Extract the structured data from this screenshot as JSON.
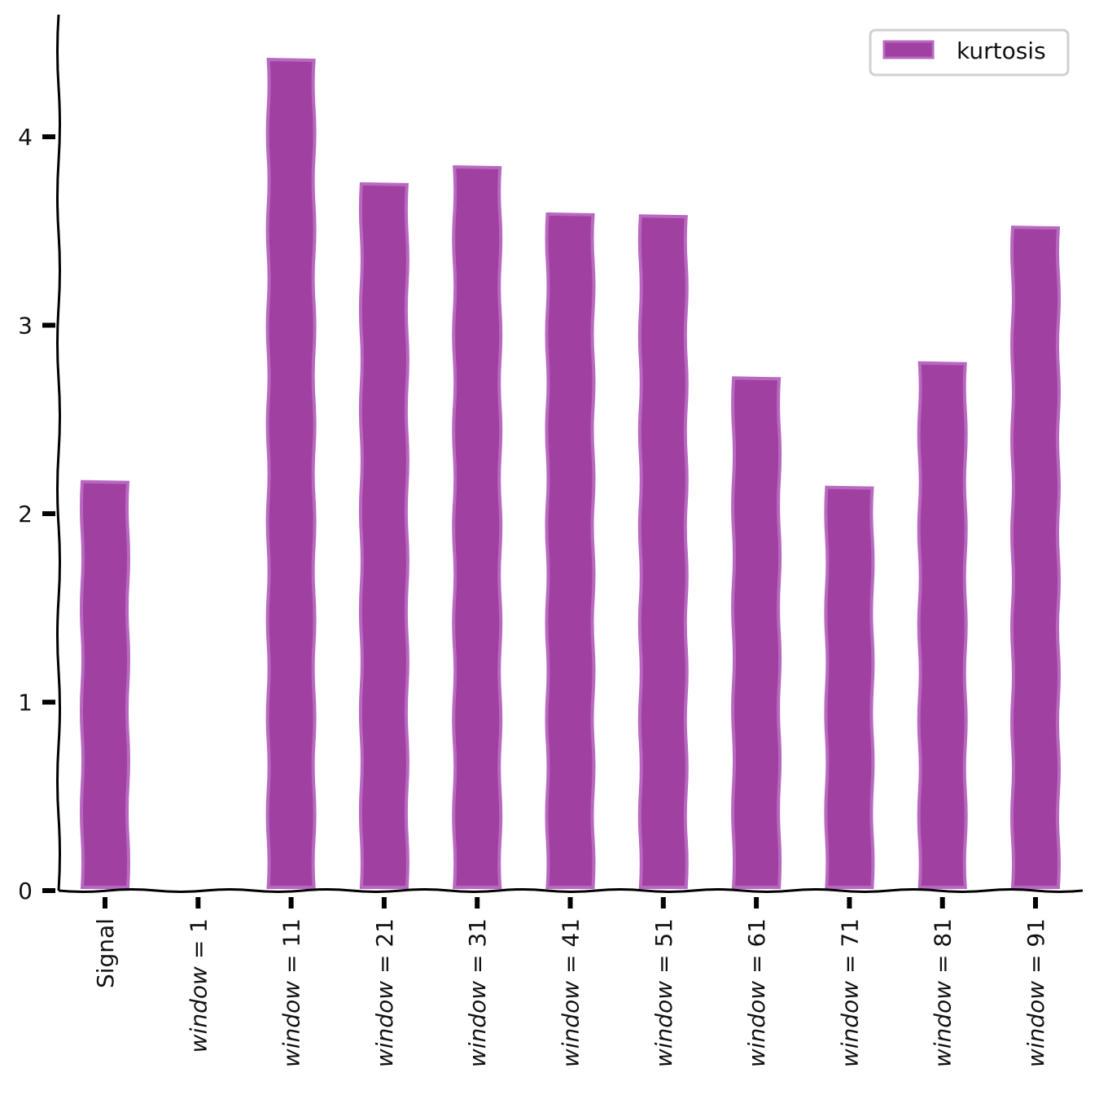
{
  "chart_data": {
    "type": "bar",
    "categories": [
      {
        "prefix": "",
        "value": "Signal"
      },
      {
        "prefix": "window",
        "value": "= 1"
      },
      {
        "prefix": "window",
        "value": "= 11"
      },
      {
        "prefix": "window",
        "value": "= 21"
      },
      {
        "prefix": "window",
        "value": "= 31"
      },
      {
        "prefix": "window",
        "value": "= 41"
      },
      {
        "prefix": "window",
        "value": "= 51"
      },
      {
        "prefix": "window",
        "value": "= 61"
      },
      {
        "prefix": "window",
        "value": "= 71"
      },
      {
        "prefix": "window",
        "value": "= 81"
      },
      {
        "prefix": "window",
        "value": "= 91"
      }
    ],
    "series": [
      {
        "name": "kurtosis",
        "values": [
          2.17,
          0.0,
          4.41,
          3.75,
          3.84,
          3.59,
          3.58,
          2.72,
          2.14,
          2.8,
          3.52
        ]
      }
    ],
    "yticks": [
      0,
      1,
      2,
      3,
      4
    ],
    "ylim": [
      0,
      4.65
    ],
    "title": "",
    "xlabel": "",
    "ylabel": "",
    "grid": false,
    "legend_position": "top-right",
    "colors": {
      "bar_fill": "#a040a0",
      "bar_edge": "#b868c0",
      "axis": "#000000",
      "legend_border": "#d0d0d0"
    }
  }
}
